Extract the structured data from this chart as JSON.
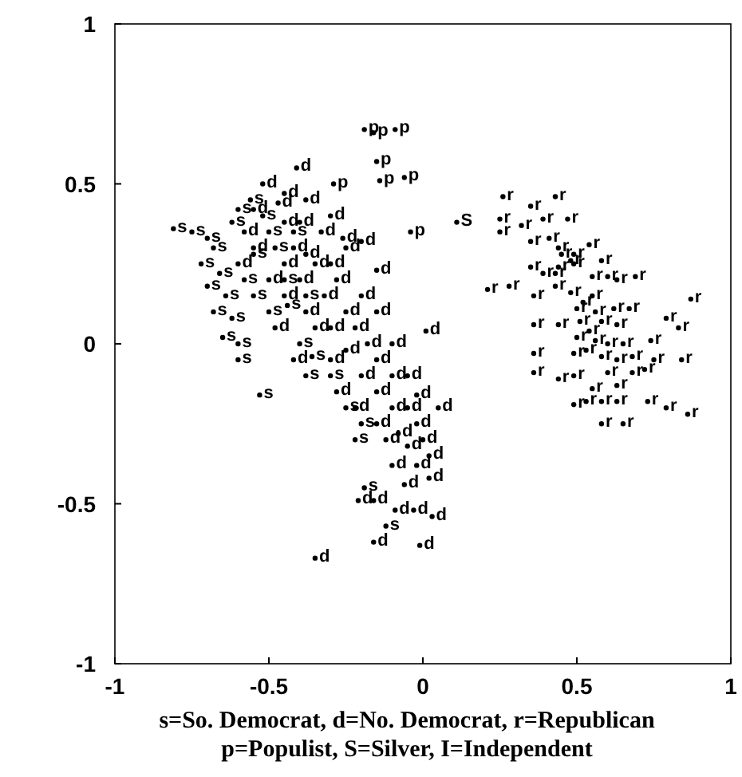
{
  "chart_data": {
    "type": "scatter",
    "xlim": [
      -1,
      1
    ],
    "ylim": [
      -1,
      1
    ],
    "xticks": [
      -1,
      -0.5,
      0,
      0.5,
      1
    ],
    "yticks": [
      -1,
      -0.5,
      0,
      0.5,
      1
    ],
    "annotations": [
      "s=So. Democrat,  d=No. Democrat,  r=Republican",
      "p=Populist,  S=Silver,  I=Independent"
    ],
    "series": [
      {
        "name": "s",
        "color": "#000000",
        "x": [
          -0.81,
          -0.75,
          -0.7,
          -0.68,
          -0.72,
          -0.66,
          -0.7,
          -0.64,
          -0.68,
          -0.62,
          -0.65,
          -0.6,
          -0.6,
          -0.58,
          -0.55,
          -0.52,
          -0.5,
          -0.48,
          -0.55,
          -0.5,
          -0.45,
          -0.44,
          -0.4,
          -0.53,
          -0.38,
          -0.38,
          -0.42,
          -0.36,
          -0.3,
          -0.25,
          -0.2,
          -0.22,
          -0.19,
          -0.12,
          -0.6,
          -0.56,
          -0.62
        ],
        "values": [
          0.36,
          0.35,
          0.33,
          0.3,
          0.25,
          0.22,
          0.18,
          0.15,
          0.1,
          0.08,
          0.02,
          0.0,
          -0.05,
          0.2,
          0.28,
          0.4,
          0.35,
          0.3,
          0.15,
          0.1,
          0.2,
          0.12,
          0.0,
          -0.16,
          -0.1,
          0.15,
          0.35,
          -0.04,
          -0.1,
          -0.2,
          -0.25,
          -0.3,
          -0.45,
          -0.57,
          0.42,
          0.45,
          0.38
        ]
      },
      {
        "name": "d",
        "color": "#000000",
        "x": [
          -0.41,
          -0.52,
          -0.45,
          -0.26,
          -0.2,
          -0.15,
          0.01,
          -0.47,
          -0.4,
          -0.33,
          -0.02,
          0.05,
          -0.21,
          -0.16,
          -0.09,
          -0.03,
          0.03,
          -0.16,
          -0.01,
          -0.35,
          -0.55,
          -0.45,
          -0.42,
          -0.38,
          -0.35,
          -0.3,
          -0.28,
          -0.32,
          -0.4,
          -0.45,
          -0.38,
          -0.3,
          -0.25,
          -0.2,
          -0.22,
          -0.18,
          -0.25,
          -0.3,
          -0.35,
          -0.15,
          -0.1,
          -0.2,
          -0.15,
          -0.1,
          -0.05,
          -0.08,
          -0.12,
          -0.05,
          0.0,
          -0.02,
          -0.1,
          -0.15,
          0.02,
          -0.06,
          -0.45,
          -0.5,
          -0.55,
          -0.48,
          -0.42,
          -0.28,
          -0.22,
          -0.1,
          -0.05,
          -0.25,
          -0.6,
          -0.58,
          -0.02,
          0.02,
          -0.15,
          -0.38,
          -0.3
        ],
        "values": [
          0.55,
          0.5,
          0.47,
          0.33,
          0.32,
          0.23,
          0.04,
          0.44,
          0.38,
          0.35,
          -0.16,
          -0.2,
          -0.49,
          -0.49,
          -0.52,
          -0.52,
          -0.54,
          -0.62,
          -0.63,
          -0.67,
          0.42,
          0.38,
          0.3,
          0.28,
          0.25,
          0.25,
          0.2,
          0.15,
          0.2,
          0.15,
          0.1,
          0.05,
          0.1,
          0.15,
          0.05,
          0.0,
          -0.02,
          -0.05,
          0.05,
          -0.05,
          -0.1,
          -0.1,
          -0.15,
          -0.2,
          -0.2,
          -0.28,
          -0.3,
          -0.32,
          -0.3,
          -0.38,
          -0.38,
          -0.25,
          -0.42,
          -0.44,
          0.25,
          0.2,
          0.3,
          0.05,
          -0.05,
          -0.15,
          -0.2,
          0.0,
          -0.1,
          0.3,
          0.25,
          0.35,
          -0.25,
          -0.35,
          0.1,
          0.45,
          0.4
        ]
      },
      {
        "name": "r",
        "color": "#000000",
        "x": [
          0.26,
          0.35,
          0.43,
          0.25,
          0.32,
          0.39,
          0.47,
          0.25,
          0.35,
          0.41,
          0.44,
          0.49,
          0.54,
          0.58,
          0.35,
          0.39,
          0.44,
          0.49,
          0.55,
          0.6,
          0.63,
          0.69,
          0.21,
          0.28,
          0.36,
          0.43,
          0.48,
          0.55,
          0.5,
          0.62,
          0.67,
          0.87,
          0.36,
          0.44,
          0.51,
          0.58,
          0.63,
          0.79,
          0.83,
          0.5,
          0.56,
          0.6,
          0.65,
          0.74,
          0.36,
          0.49,
          0.58,
          0.63,
          0.68,
          0.75,
          0.84,
          0.36,
          0.44,
          0.49,
          0.6,
          0.68,
          0.72,
          0.55,
          0.63,
          0.49,
          0.53,
          0.58,
          0.63,
          0.73,
          0.79,
          0.86,
          0.58,
          0.65,
          0.43,
          0.48,
          0.52,
          0.54,
          0.53,
          0.45,
          0.56
        ],
        "values": [
          0.46,
          0.43,
          0.46,
          0.39,
          0.37,
          0.39,
          0.39,
          0.35,
          0.32,
          0.33,
          0.3,
          0.28,
          0.31,
          0.26,
          0.24,
          0.22,
          0.24,
          0.25,
          0.21,
          0.21,
          0.2,
          0.21,
          0.17,
          0.18,
          0.15,
          0.18,
          0.16,
          0.15,
          0.11,
          0.11,
          0.11,
          0.14,
          0.06,
          0.06,
          0.07,
          0.07,
          0.06,
          0.08,
          0.05,
          0.02,
          0.01,
          0.0,
          0.0,
          0.01,
          -0.03,
          -0.03,
          -0.04,
          -0.05,
          -0.04,
          -0.05,
          -0.05,
          -0.09,
          -0.11,
          -0.1,
          -0.09,
          -0.09,
          -0.08,
          -0.14,
          -0.13,
          -0.19,
          -0.18,
          -0.18,
          -0.18,
          -0.18,
          -0.2,
          -0.22,
          -0.25,
          -0.25,
          0.22,
          0.26,
          0.13,
          0.04,
          -0.02,
          0.28,
          0.1
        ]
      },
      {
        "name": "p",
        "color": "#000000",
        "x": [
          -0.19,
          -0.16,
          -0.09,
          -0.15,
          -0.29,
          -0.14,
          -0.06,
          -0.04
        ],
        "values": [
          0.67,
          0.66,
          0.67,
          0.57,
          0.5,
          0.51,
          0.52,
          0.35
        ]
      },
      {
        "name": "S",
        "color": "#000000",
        "x": [
          0.11
        ],
        "values": [
          0.38
        ]
      }
    ]
  }
}
